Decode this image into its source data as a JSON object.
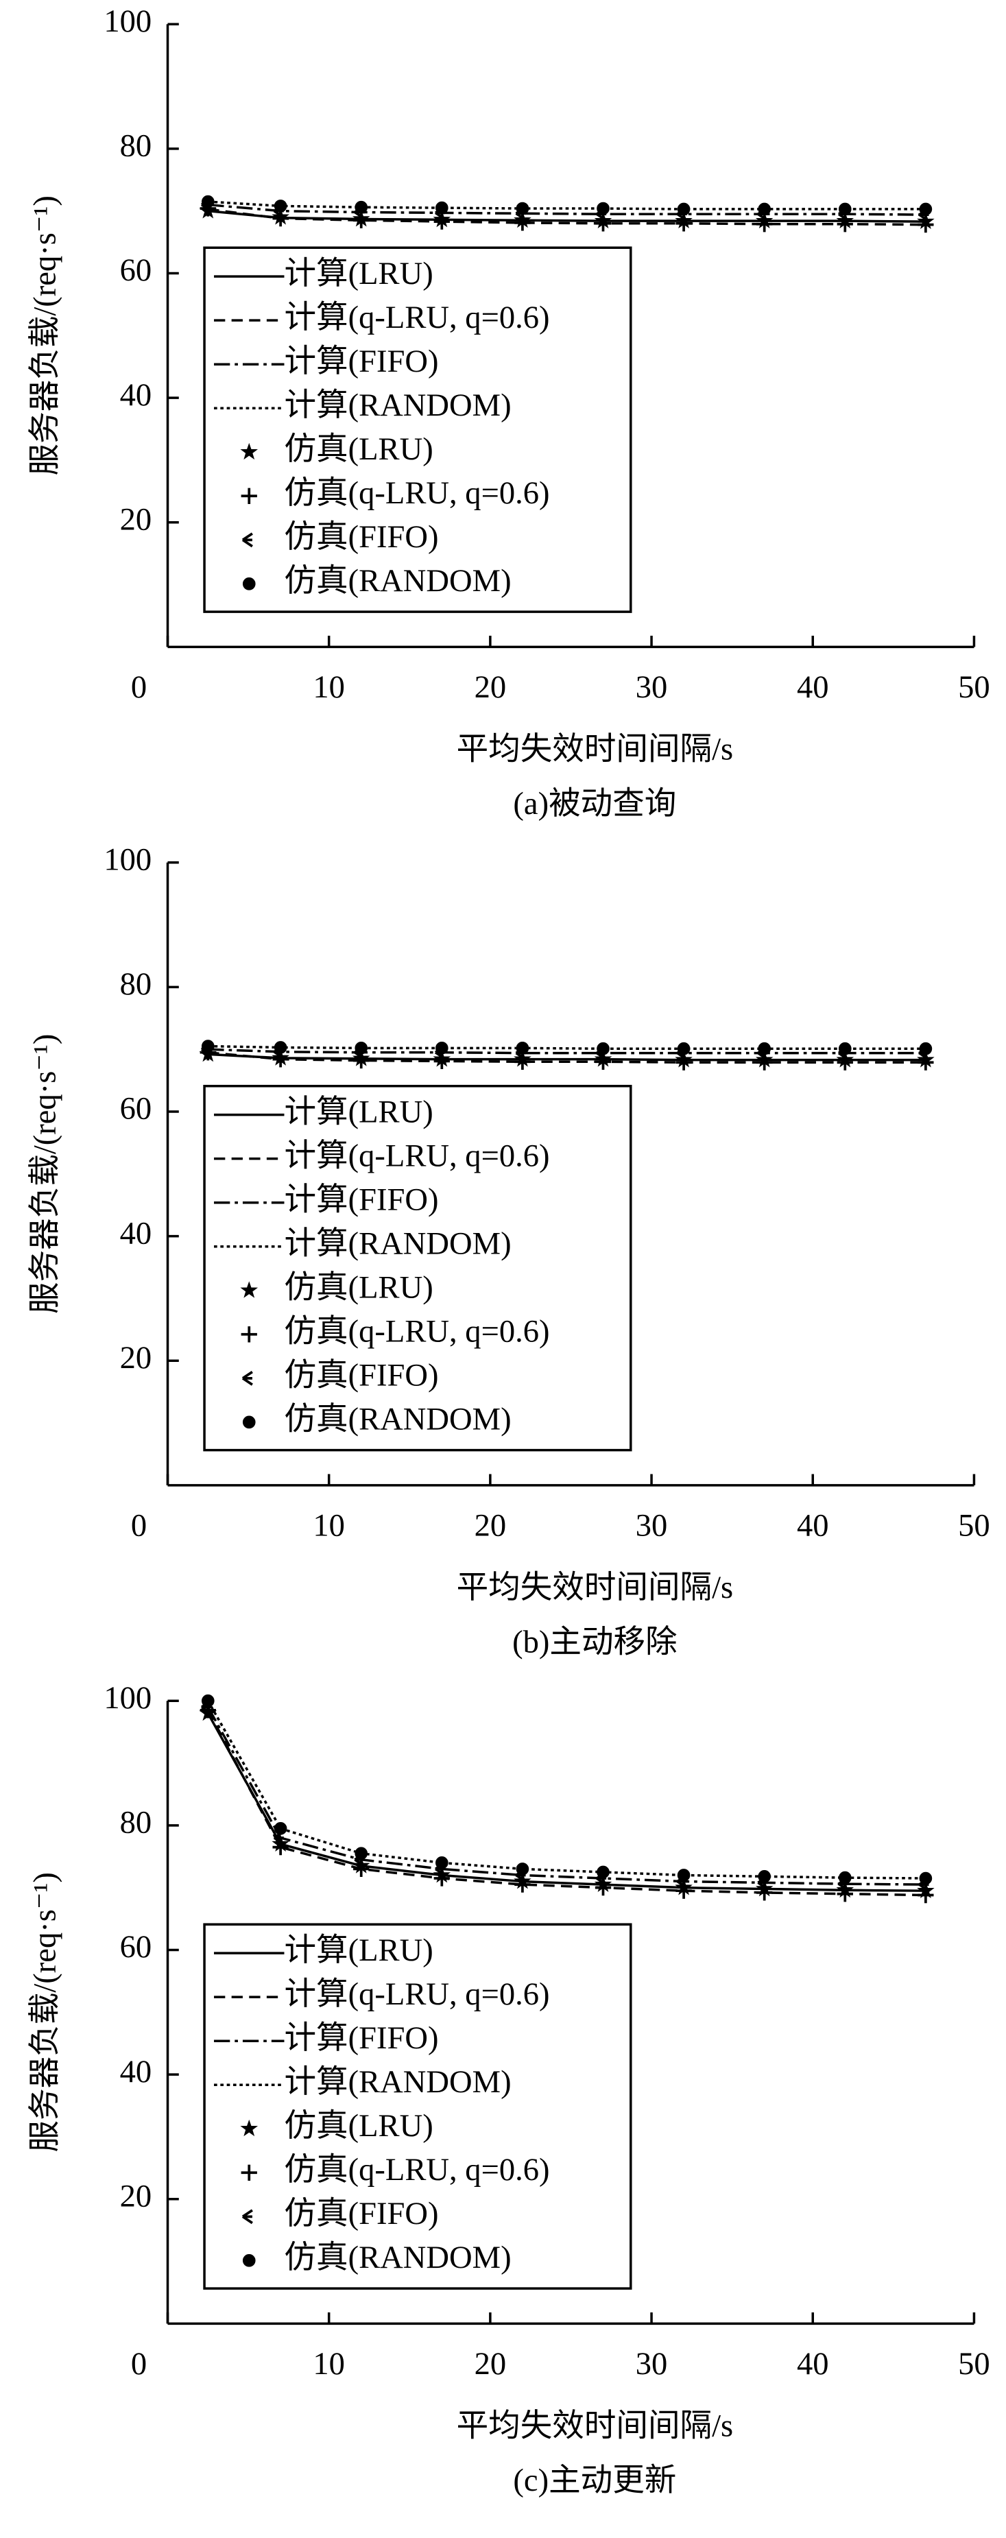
{
  "chart_data": [
    {
      "type": "line",
      "caption": "(a)被动查询",
      "xlabel": "平均失效时间间隔/s",
      "ylabel": "服务器负载/(req·s⁻¹)",
      "xlim": [
        0,
        50
      ],
      "ylim": [
        0,
        100
      ],
      "xticks": [
        0,
        10,
        20,
        30,
        40,
        50
      ],
      "yticks": [
        20,
        40,
        60,
        80,
        100
      ],
      "legend": "lower-left",
      "x": [
        2.5,
        7,
        12,
        17,
        22,
        27,
        32,
        37,
        42,
        47
      ],
      "series": [
        {
          "name": "计算(LRU)",
          "color": "#000",
          "style": "solid",
          "values": [
            70,
            68.9,
            68.7,
            68.6,
            68.5,
            68.4,
            68.4,
            68.4,
            68.4,
            68.3
          ]
        },
        {
          "name": "计算(q-LRU, q=0.6)",
          "color": "#000",
          "style": "dashed",
          "values": [
            70.3,
            68.8,
            68.5,
            68.3,
            68.1,
            68,
            68,
            67.9,
            67.9,
            67.8
          ]
        },
        {
          "name": "计算(FIFO)",
          "color": "#000",
          "style": "dashdot",
          "values": [
            71,
            70,
            69.8,
            69.7,
            69.6,
            69.5,
            69.5,
            69.5,
            69.5,
            69.4
          ]
        },
        {
          "name": "计算(RANDOM)",
          "color": "#000",
          "style": "dotted",
          "values": [
            71.5,
            70.8,
            70.6,
            70.5,
            70.4,
            70.4,
            70.3,
            70.3,
            70.3,
            70.3
          ]
        },
        {
          "name": "仿真(LRU)",
          "color": "#000",
          "marker": "star",
          "values": [
            70,
            69,
            68.7,
            68.6,
            68.5,
            68.4,
            68.4,
            68.4,
            68.4,
            68.3
          ]
        },
        {
          "name": "仿真(q-LRU, q=0.6)",
          "color": "#000",
          "marker": "plus",
          "values": [
            70.4,
            68.8,
            68.5,
            68.3,
            68.1,
            68,
            68,
            67.9,
            67.9,
            67.8
          ]
        },
        {
          "name": "仿真(FIFO)",
          "color": "#000",
          "marker": "tri",
          "values": [
            71,
            70,
            69.8,
            69.7,
            69.6,
            69.5,
            69.5,
            69.5,
            69.5,
            69.4
          ]
        },
        {
          "name": "仿真(RANDOM)",
          "color": "#000",
          "marker": "dot",
          "values": [
            71.5,
            70.8,
            70.6,
            70.5,
            70.4,
            70.4,
            70.3,
            70.3,
            70.3,
            70.3
          ]
        }
      ]
    },
    {
      "type": "line",
      "caption": "(b)主动移除",
      "xlabel": "平均失效时间间隔/s",
      "ylabel": "服务器负载/(req·s⁻¹)",
      "xlim": [
        0,
        50
      ],
      "ylim": [
        0,
        100
      ],
      "xticks": [
        0,
        10,
        20,
        30,
        40,
        50
      ],
      "yticks": [
        20,
        40,
        60,
        80,
        100
      ],
      "legend": "lower-left",
      "x": [
        2.5,
        7,
        12,
        17,
        22,
        27,
        32,
        37,
        42,
        47
      ],
      "series": [
        {
          "name": "计算(LRU)",
          "color": "#000",
          "style": "solid",
          "values": [
            69.2,
            68.6,
            68.5,
            68.4,
            68.4,
            68.4,
            68.3,
            68.3,
            68.3,
            68.3
          ]
        },
        {
          "name": "计算(q-LRU, q=0.6)",
          "color": "#000",
          "style": "dashed",
          "values": [
            69.5,
            68.4,
            68.2,
            68.1,
            68,
            68,
            67.9,
            67.9,
            67.9,
            67.9
          ]
        },
        {
          "name": "计算(FIFO)",
          "color": "#000",
          "style": "dashdot",
          "values": [
            70,
            69.6,
            69.5,
            69.5,
            69.4,
            69.4,
            69.4,
            69.4,
            69.4,
            69.4
          ]
        },
        {
          "name": "计算(RANDOM)",
          "color": "#000",
          "style": "dotted",
          "values": [
            70.5,
            70.3,
            70.2,
            70.2,
            70.2,
            70.1,
            70.1,
            70.1,
            70.1,
            70.1
          ]
        },
        {
          "name": "仿真(LRU)",
          "color": "#000",
          "marker": "star",
          "values": [
            69.2,
            68.6,
            68.5,
            68.4,
            68.4,
            68.4,
            68.3,
            68.3,
            68.3,
            68.3
          ]
        },
        {
          "name": "仿真(q-LRU, q=0.6)",
          "color": "#000",
          "marker": "plus",
          "values": [
            69.5,
            68.4,
            68.2,
            68.1,
            68,
            68,
            67.9,
            67.9,
            67.9,
            67.9
          ]
        },
        {
          "name": "仿真(FIFO)",
          "color": "#000",
          "marker": "tri",
          "values": [
            70,
            69.6,
            69.5,
            69.5,
            69.4,
            69.4,
            69.4,
            69.4,
            69.4,
            69.4
          ]
        },
        {
          "name": "仿真(RANDOM)",
          "color": "#000",
          "marker": "dot",
          "values": [
            70.5,
            70.3,
            70.2,
            70.2,
            70.2,
            70.1,
            70.1,
            70.1,
            70.1,
            70.1
          ]
        }
      ]
    },
    {
      "type": "line",
      "caption": "(c)主动更新",
      "xlabel": "平均失效时间间隔/s",
      "ylabel": "服务器负载/(req·s⁻¹)",
      "xlim": [
        0,
        50
      ],
      "ylim": [
        0,
        100
      ],
      "xticks": [
        0,
        10,
        20,
        30,
        40,
        50
      ],
      "yticks": [
        20,
        40,
        60,
        80,
        100
      ],
      "legend": "lower-left",
      "x": [
        2.5,
        7,
        12,
        17,
        22,
        27,
        32,
        37,
        42,
        47
      ],
      "series": [
        {
          "name": "计算(LRU)",
          "color": "#000",
          "style": "solid",
          "values": [
            98,
            77,
            73.5,
            72,
            71,
            70.5,
            70,
            69.8,
            69.6,
            69.5
          ]
        },
        {
          "name": "计算(q-LRU, q=0.6)",
          "color": "#000",
          "style": "dashed",
          "values": [
            98.5,
            76.5,
            73,
            71.5,
            70.5,
            70,
            69.5,
            69.2,
            69,
            68.8
          ]
        },
        {
          "name": "计算(FIFO)",
          "color": "#000",
          "style": "dashdot",
          "values": [
            99,
            78,
            74.5,
            73,
            72,
            71.5,
            71,
            70.8,
            70.6,
            70.5
          ]
        },
        {
          "name": "计算(RANDOM)",
          "color": "#000",
          "style": "dotted",
          "values": [
            100,
            79.5,
            75.5,
            74,
            73,
            72.5,
            72,
            71.8,
            71.6,
            71.5
          ]
        },
        {
          "name": "仿真(LRU)",
          "color": "#000",
          "marker": "star",
          "values": [
            98,
            77,
            73.5,
            72,
            71,
            70.5,
            70,
            69.8,
            69.6,
            69.5
          ]
        },
        {
          "name": "仿真(q-LRU, q=0.6)",
          "color": "#000",
          "marker": "plus",
          "values": [
            98.5,
            76.5,
            73,
            71.5,
            70.5,
            70,
            69.5,
            69.2,
            69,
            68.8
          ]
        },
        {
          "name": "仿真(FIFO)",
          "color": "#000",
          "marker": "tri",
          "values": [
            99,
            78,
            74.5,
            73,
            72,
            71.5,
            71,
            70.8,
            70.6,
            70.5
          ]
        },
        {
          "name": "仿真(RANDOM)",
          "color": "#000",
          "marker": "dot",
          "values": [
            100,
            79.5,
            75.5,
            74,
            73,
            72.5,
            72,
            71.8,
            71.6,
            71.5
          ]
        }
      ]
    }
  ]
}
